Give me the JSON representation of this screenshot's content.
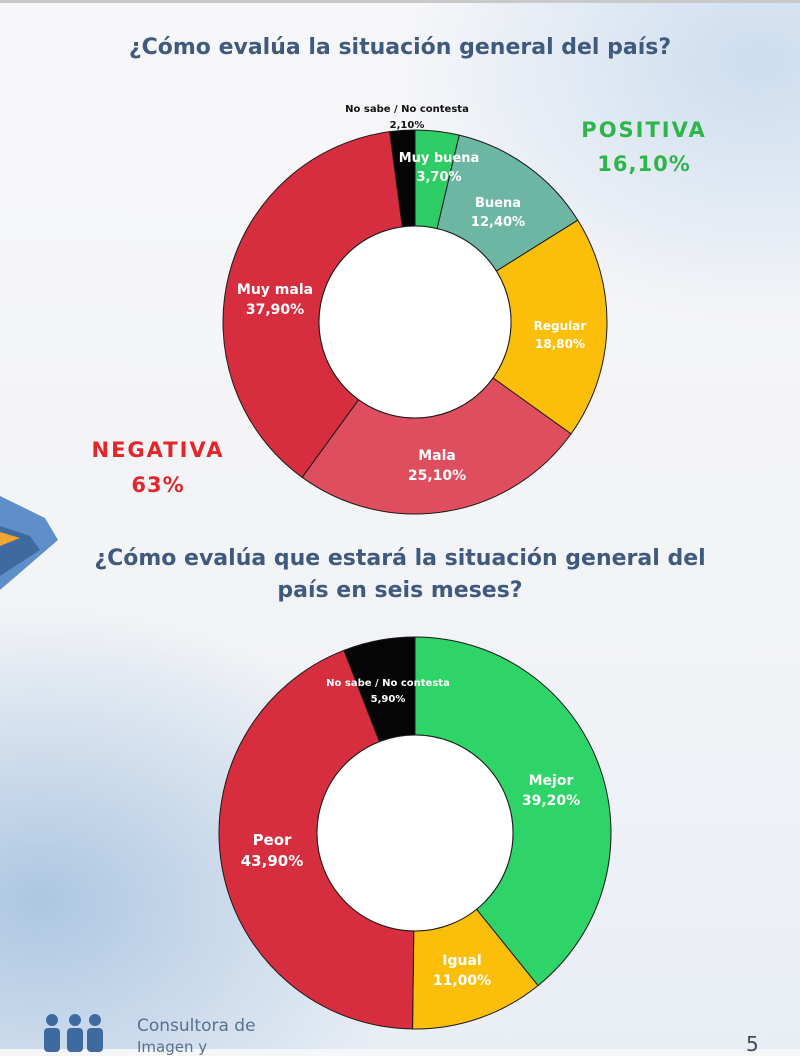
{
  "chart_data": [
    {
      "type": "pie",
      "title": "¿Cómo evalúa la situación general del país?",
      "slices": [
        {
          "label": "Muy buena",
          "value": 3.7,
          "display": "3,70%",
          "color": "#2ecc64"
        },
        {
          "label": "Buena",
          "value": 12.4,
          "display": "12,40%",
          "color": "#6db6a3"
        },
        {
          "label": "Regular",
          "value": 18.8,
          "display": "18,80%",
          "color": "#fbbf0a"
        },
        {
          "label": "Mala",
          "value": 25.1,
          "display": "25,10%",
          "color": "#de4e5e"
        },
        {
          "label": "Muy mala",
          "value": 37.9,
          "display": "37,90%",
          "color": "#d62e3f"
        },
        {
          "label": "No sabe / No contesta",
          "value": 2.1,
          "display": "2,10%",
          "color": "#050505"
        }
      ],
      "summary": {
        "positive_label": "POSITIVA",
        "positive_value": "16,10%",
        "positive_color": "#2db54a",
        "negative_label": "NEGATIVA",
        "negative_value": "63%",
        "negative_color": "#e3262b"
      }
    },
    {
      "type": "pie",
      "title": "¿Cómo evalúa que estará la situación general del país en seis meses?",
      "slices": [
        {
          "label": "Mejor",
          "value": 39.2,
          "display": "39,20%",
          "color": "#2ed468"
        },
        {
          "label": "Igual",
          "value": 11.0,
          "display": "11,00%",
          "color": "#fbbf0a"
        },
        {
          "label": "Peor",
          "value": 43.9,
          "display": "43,90%",
          "color": "#d62e3f"
        },
        {
          "label": "No sabe / No contesta",
          "value": 5.9,
          "display": "5,90%",
          "color": "#050505"
        }
      ]
    }
  ],
  "footer": {
    "brand_line1": "Consultora de",
    "brand_line2": "Imagen y",
    "page_number": "5"
  },
  "colors": {
    "title": "#3f5a7c",
    "accent_blue": "#5f8fc9",
    "accent_orange": "#f3a533"
  }
}
